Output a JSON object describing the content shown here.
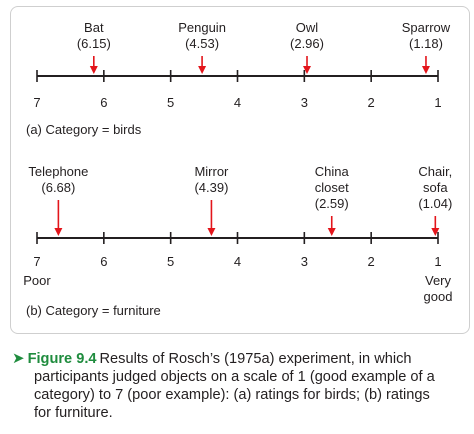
{
  "colors": {
    "axis": "#231f20",
    "marker_arrow": "#e3151b",
    "caption_accent": "#1f8c3e",
    "caption_text": "#231f20",
    "panel_border": "#cfcfcf"
  },
  "scale": {
    "tick_values": [
      7,
      6,
      5,
      4,
      3,
      2,
      1
    ],
    "tick_labels": [
      "7",
      "6",
      "5",
      "4",
      "3",
      "2",
      "1"
    ],
    "direction": "reversed"
  },
  "panels": [
    {
      "id": "birds",
      "caption": "(a) Category = birds",
      "end_labels": {
        "left": [],
        "right": []
      },
      "items": [
        {
          "label_lines": [
            "Bat"
          ],
          "value_text": "(6.15)",
          "value": 6.15
        },
        {
          "label_lines": [
            "Penguin"
          ],
          "value_text": "(4.53)",
          "value": 4.53
        },
        {
          "label_lines": [
            "Owl"
          ],
          "value_text": "(2.96)",
          "value": 2.96
        },
        {
          "label_lines": [
            "Sparrow"
          ],
          "value_text": "(1.18)",
          "value": 1.18
        }
      ]
    },
    {
      "id": "furniture",
      "caption": "(b) Category = furniture",
      "end_labels": {
        "left": [
          "Poor"
        ],
        "right": [
          "Very",
          "good"
        ]
      },
      "items": [
        {
          "label_lines": [
            "Telephone"
          ],
          "value_text": "(6.68)",
          "value": 6.68
        },
        {
          "label_lines": [
            "Mirror"
          ],
          "value_text": "(4.39)",
          "value": 4.39
        },
        {
          "label_lines": [
            "China",
            "closet"
          ],
          "value_text": "(2.59)",
          "value": 2.59
        },
        {
          "label_lines": [
            "Chair,",
            "sofa"
          ],
          "value_text": "(1.04)",
          "value": 1.04
        }
      ]
    }
  ],
  "caption": {
    "arrow_icon": "➤",
    "label": "Figure 9.4",
    "lines": [
      "Results of Rosch’s (1975a) experiment, in which",
      "participants judged objects on a scale of 1 (good example of a",
      "category) to 7 (poor example): (a) ratings for birds; (b) ratings",
      "for furniture."
    ]
  }
}
